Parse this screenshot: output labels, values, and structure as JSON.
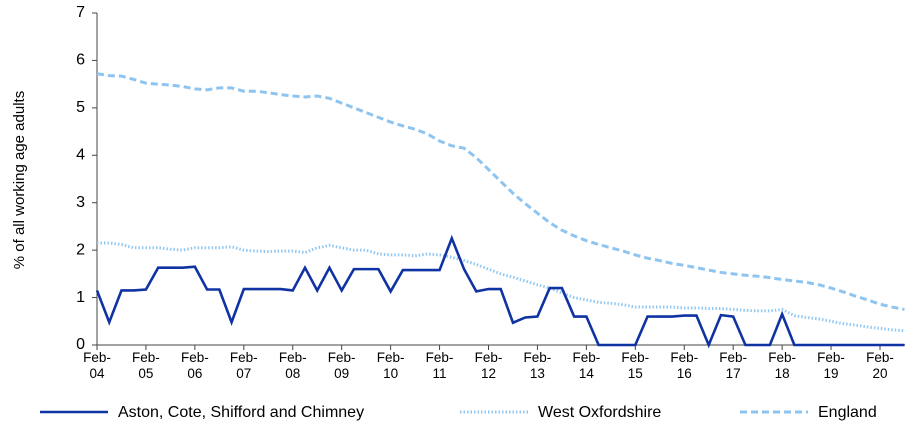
{
  "chart_data": {
    "type": "line",
    "ylabel": "% of all working age adults",
    "categories": [
      "Feb-04",
      null,
      null,
      null,
      "Feb-05",
      null,
      null,
      null,
      "Feb-06",
      null,
      null,
      null,
      "Feb-07",
      null,
      null,
      null,
      "Feb-08",
      null,
      null,
      null,
      "Feb-09",
      null,
      null,
      null,
      "Feb-10",
      null,
      null,
      null,
      "Feb-11",
      null,
      null,
      null,
      "Feb-12",
      null,
      null,
      null,
      "Feb-13",
      null,
      null,
      null,
      "Feb-14",
      null,
      null,
      null,
      "Feb-15",
      null,
      null,
      null,
      "Feb-16",
      null,
      null,
      null,
      "Feb-17",
      null,
      null,
      null,
      "Feb-18",
      null,
      null,
      null,
      "Feb-19",
      null,
      null,
      null,
      "Feb-20",
      null,
      null
    ],
    "series": [
      {
        "name": "Aston, Cote, Shifford and Chimney",
        "color": "#1033a3",
        "style": "solid",
        "values": [
          1.15,
          0.48,
          1.15,
          1.15,
          1.17,
          1.63,
          1.63,
          1.63,
          1.65,
          1.17,
          1.17,
          0.48,
          1.18,
          1.18,
          1.18,
          1.18,
          1.15,
          1.63,
          1.15,
          1.63,
          1.15,
          1.6,
          1.6,
          1.6,
          1.13,
          1.58,
          1.58,
          1.58,
          1.58,
          2.25,
          1.6,
          1.13,
          1.18,
          1.18,
          0.47,
          0.58,
          0.6,
          1.2,
          1.2,
          0.6,
          0.6,
          0,
          0,
          0,
          0,
          0.6,
          0.6,
          0.6,
          0.62,
          0.62,
          0,
          0.63,
          0.6,
          0,
          0,
          0,
          0.65,
          0,
          0,
          0,
          0,
          0,
          0,
          0,
          0,
          0,
          0
        ]
      },
      {
        "name": "West Oxfordshire",
        "color": "#92c8f2",
        "style": "dotted",
        "values": [
          2.15,
          2.15,
          2.12,
          2.05,
          2.05,
          2.05,
          2.02,
          2.0,
          2.05,
          2.05,
          2.05,
          2.07,
          2.0,
          1.98,
          1.97,
          1.98,
          1.98,
          1.95,
          2.05,
          2.1,
          2.05,
          2.0,
          2.0,
          1.92,
          1.9,
          1.9,
          1.88,
          1.92,
          1.9,
          1.85,
          1.78,
          1.7,
          1.6,
          1.5,
          1.43,
          1.35,
          1.27,
          1.2,
          1.1,
          1.0,
          0.95,
          0.9,
          0.88,
          0.85,
          0.8,
          0.8,
          0.8,
          0.8,
          0.78,
          0.78,
          0.77,
          0.77,
          0.75,
          0.73,
          0.72,
          0.72,
          0.75,
          0.62,
          0.58,
          0.55,
          0.5,
          0.45,
          0.42,
          0.38,
          0.35,
          0.32,
          0.3
        ]
      },
      {
        "name": "England",
        "color": "#8ec4f0",
        "style": "dashed",
        "values": [
          5.72,
          5.68,
          5.67,
          5.6,
          5.52,
          5.5,
          5.48,
          5.45,
          5.4,
          5.38,
          5.42,
          5.42,
          5.35,
          5.35,
          5.32,
          5.28,
          5.25,
          5.23,
          5.25,
          5.2,
          5.1,
          5.0,
          4.9,
          4.8,
          4.7,
          4.62,
          4.55,
          4.45,
          4.3,
          4.2,
          4.15,
          3.95,
          3.7,
          3.45,
          3.2,
          2.98,
          2.78,
          2.58,
          2.42,
          2.3,
          2.2,
          2.12,
          2.05,
          1.98,
          1.9,
          1.83,
          1.78,
          1.72,
          1.68,
          1.63,
          1.58,
          1.53,
          1.5,
          1.47,
          1.45,
          1.42,
          1.38,
          1.35,
          1.32,
          1.27,
          1.2,
          1.12,
          1.03,
          0.95,
          0.86,
          0.8,
          0.75
        ]
      }
    ],
    "ylim": [
      0,
      7
    ],
    "yticks": [
      0,
      1,
      2,
      3,
      4,
      5,
      6,
      7
    ],
    "grid": false,
    "legend": "bottom"
  }
}
